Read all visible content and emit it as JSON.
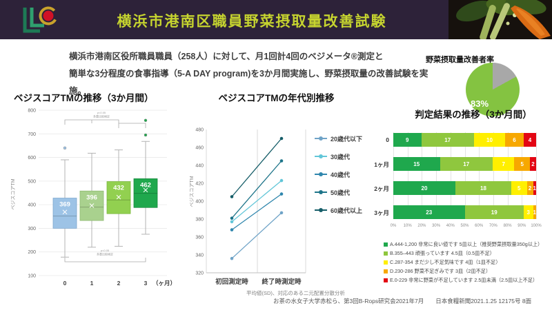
{
  "header": {
    "title": "横浜市港南区職員野菜摂取量改善試験",
    "bg_color": "#2d2239",
    "title_color": "#c6d42f"
  },
  "intro": {
    "line1": "横浜市港南区役所職員職員（258人）に対して、月1回計4回のベジメータ®測定と",
    "line2": "簡単な3分程度の食事指導（5-A DAY program)を3か月間実施し、野菜摂取量の改善試験を実施。"
  },
  "footer": {
    "citation": "お茶の水女子大学赤松ら、第3回B-Rops研究会2021年7月　　日本食糧新聞2021.1.25 12175号 8面"
  },
  "chart_data": [
    {
      "type": "boxplot",
      "title": "ベジスコアTMの推移（3か月間）",
      "ylabel": "ベジスコアTM",
      "ylim": [
        100,
        800
      ],
      "ytick_step": 100,
      "categories": [
        "0",
        "1",
        "2",
        "3"
      ],
      "xunit": "（ヶ月）",
      "means": [
        369,
        396,
        432,
        462
      ],
      "boxes": [
        {
          "lo": 178,
          "q1": 300,
          "median": 352,
          "q3": 428,
          "hi": 590,
          "outliers": [
            640
          ],
          "fill": "#9dc3e6",
          "stroke": "#7fa8cf"
        },
        {
          "lo": 220,
          "q1": 333,
          "median": 390,
          "q3": 458,
          "hi": 618,
          "outliers": [],
          "fill": "#a9d18e",
          "stroke": "#8fba74"
        },
        {
          "lo": 224,
          "q1": 362,
          "median": 420,
          "q3": 498,
          "hi": 632,
          "outliers": [],
          "fill": "#92d050",
          "stroke": "#7cb83e"
        },
        {
          "lo": 275,
          "q1": 388,
          "median": 448,
          "q3": 510,
          "hi": 668,
          "outliers": [
            695,
            757
          ],
          "fill": "#1fa84d",
          "stroke": "#188a3e"
        }
      ],
      "anno_top": [
        "p<0.05",
        "多重比較検定"
      ],
      "anno_bottom": [
        "p<0.05",
        "多重比較検定"
      ]
    },
    {
      "type": "line",
      "title": "ベジスコアTMの年代別推移",
      "ylabel": "ベジスコアTM",
      "ylim": [
        320,
        480
      ],
      "ytick_step": 20,
      "x": [
        "初回測定時",
        "終了時測定時"
      ],
      "series": [
        {
          "name": "20歳代以下",
          "values": [
            336,
            387
          ],
          "color": "#6fa3c7"
        },
        {
          "name": "30歳代",
          "values": [
            377,
            423
          ],
          "color": "#62c6d8"
        },
        {
          "name": "40歳代",
          "values": [
            368,
            408
          ],
          "color": "#2f86ad"
        },
        {
          "name": "50歳代",
          "values": [
            381,
            445
          ],
          "color": "#1d7489"
        },
        {
          "name": "60歳代以上",
          "values": [
            405,
            470
          ],
          "color": "#155d68"
        }
      ],
      "note": "平均値(SD)、対応のある二元配置分散分析"
    },
    {
      "type": "pie",
      "title": "野菜摂取量改善者率",
      "slices": [
        {
          "value": 83,
          "color": "#84c341"
        },
        {
          "value": 17,
          "color": "#a8a8a8"
        }
      ],
      "center_label": "83%"
    },
    {
      "type": "bar",
      "variant": "stacked-horizontal-100",
      "title": "判定結果の推移（3か月間）",
      "total": 46,
      "categories": [
        "0",
        "1ヶ月",
        "2ヶ月",
        "3ヶ月"
      ],
      "series": [
        {
          "name": "A",
          "color": "#1fa84d",
          "values": [
            9,
            15,
            20,
            23
          ]
        },
        {
          "name": "B",
          "color": "#8fc73e",
          "values": [
            17,
            17,
            18,
            19
          ]
        },
        {
          "name": "C",
          "color": "#ffef00",
          "values": [
            10,
            7,
            5,
            3
          ]
        },
        {
          "name": "D",
          "color": "#f7a800",
          "values": [
            6,
            5,
            2,
            1
          ]
        },
        {
          "name": "E",
          "color": "#e30613",
          "values": [
            4,
            2,
            1,
            0
          ]
        }
      ],
      "xticks": [
        "0%",
        "10%",
        "20%",
        "30%",
        "40%",
        "50%",
        "60%",
        "70%",
        "80%",
        "90%",
        "100%"
      ],
      "legend": [
        {
          "color": "#1fa84d",
          "text": "A.444-1,200 非常に良い値です 5皿以上（推奨野菜摂取量350g以上）"
        },
        {
          "color": "#8fc73e",
          "text": "B.355–443 頑張っています 4.5皿（0.5皿不足）"
        },
        {
          "color": "#ffef00",
          "text": "C.287-354 まだ少し不足気味です 4皿（1皿不足）"
        },
        {
          "color": "#f7a800",
          "text": "D.230-286 野菜不足ぎみです 3皿（2皿不足）"
        },
        {
          "color": "#e30613",
          "text": "E.0-229 非常に野菜が不足しています 2.5皿未満（2.5皿以上不足）"
        }
      ]
    }
  ]
}
